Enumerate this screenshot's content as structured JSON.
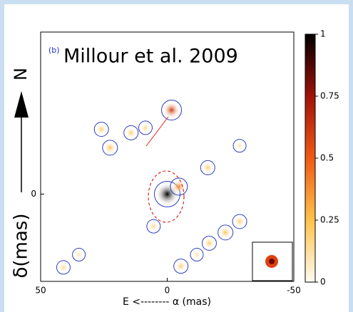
{
  "chart_data": {
    "type": "image",
    "panel_label": "(b)",
    "title": "Millour et al. 2009",
    "x_label": "E <-------- α (mas)",
    "y_label": "δ(mas)",
    "north_label": "N",
    "xlim": [
      50,
      -50
    ],
    "xticks": [
      50,
      0,
      -50
    ],
    "ylim": [
      -35,
      65
    ],
    "yticks": [
      0
    ],
    "sources": [
      {
        "x": 0,
        "y": 0,
        "value": 1
      },
      {
        "x": -4.6,
        "y": 3,
        "value": 0.4
      },
      {
        "x": -1.7,
        "y": 33.7,
        "value": 0.6
      },
      {
        "x": 26,
        "y": 26,
        "value": 0.2
      },
      {
        "x": 22.6,
        "y": 18.6,
        "value": 0.25
      },
      {
        "x": 14.3,
        "y": 24.6,
        "value": 0.2
      },
      {
        "x": 8.6,
        "y": 26.6,
        "value": 0.15
      },
      {
        "x": -16,
        "y": 10.6,
        "value": 0.2
      },
      {
        "x": -28.6,
        "y": 19.4,
        "value": 0.1
      },
      {
        "x": -28.6,
        "y": -11,
        "value": 0.2
      },
      {
        "x": -23,
        "y": -15.4,
        "value": 0.25
      },
      {
        "x": -16.6,
        "y": -19.7,
        "value": 0.2
      },
      {
        "x": -5.4,
        "y": -28.9,
        "value": 0.2
      },
      {
        "x": -11.7,
        "y": -24.3,
        "value": 0.1
      },
      {
        "x": 34.9,
        "y": -24.3,
        "value": 0.1
      },
      {
        "x": 41,
        "y": -29.4,
        "value": 0.15
      },
      {
        "x": 5.4,
        "y": -12.9,
        "value": 0.15
      }
    ],
    "colorbar": {
      "lim": [
        0,
        1
      ],
      "ticks": [
        0,
        0.25,
        0.5,
        0.75,
        1
      ]
    }
  }
}
